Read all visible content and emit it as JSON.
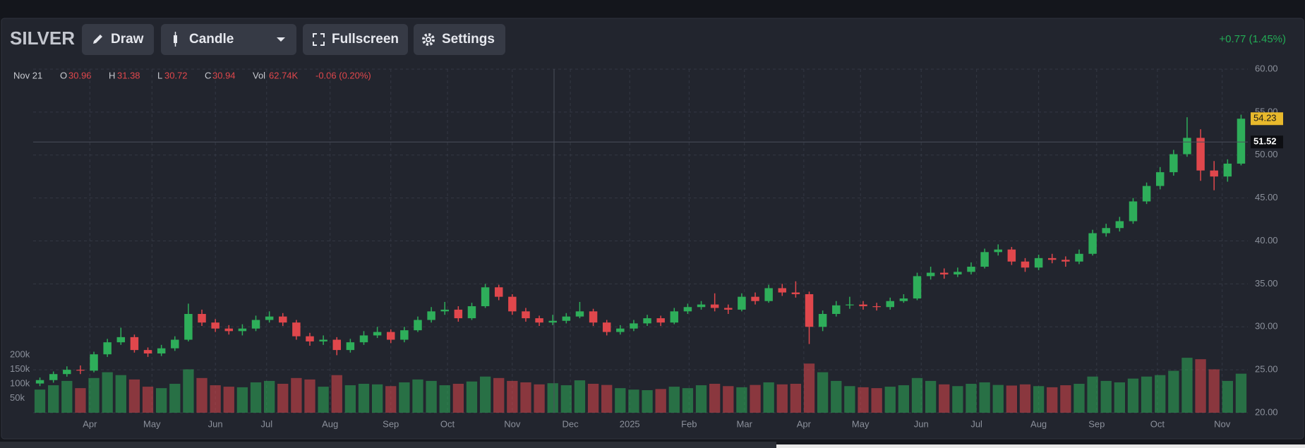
{
  "header": {
    "symbol": "SILVER",
    "buttons": [
      "Draw",
      "Candle",
      "Fullscreen",
      "Settings"
    ],
    "change": "+0.77 (1.45%)"
  },
  "legend": {
    "date": "Nov 21",
    "open_label": "O",
    "open": 30.96,
    "high_label": "H",
    "high": 31.38,
    "low_label": "L",
    "low": 30.72,
    "close_label": "C",
    "close": 30.94,
    "volume_label": "Vol",
    "volume": "62.74K",
    "change": "-0.06 (0.20%)"
  },
  "chart_data": {
    "type": "candlestick",
    "open": [
      23.4,
      23.8,
      24.5,
      25.0,
      24.9,
      26.8,
      28.2,
      28.8,
      27.3,
      26.9,
      27.5,
      28.5,
      31.5,
      30.5,
      29.8,
      29.5,
      29.8,
      30.8,
      31.2,
      30.5,
      28.9,
      28.3,
      28.5,
      27.3,
      28.2,
      29.0,
      29.4,
      28.5,
      29.6,
      30.8,
      31.8,
      32.0,
      31.0,
      32.4,
      34.6,
      33.5,
      31.8,
      31.0,
      30.5,
      30.7,
      31.2,
      31.8,
      30.5,
      29.4,
      29.8,
      30.4,
      31.0,
      30.5,
      31.8,
      32.3,
      32.6,
      32.2,
      32.0,
      33.5,
      33.0,
      34.5,
      34.0,
      33.8,
      30.0,
      31.5,
      32.5,
      32.6,
      32.4,
      32.3,
      33.0,
      33.3,
      35.9,
      36.3,
      36.1,
      36.4,
      37.0,
      38.7,
      39.0,
      37.6,
      36.9,
      38.0,
      37.8,
      37.6,
      38.5,
      40.9,
      41.5,
      42.3,
      44.6,
      46.4,
      48.0,
      50.1,
      52.0,
      48.2,
      47.5,
      49.0
    ],
    "high": [
      24.1,
      24.8,
      25.4,
      25.5,
      27.1,
      28.6,
      29.9,
      29.1,
      27.6,
      27.9,
      28.9,
      32.7,
      32.0,
      30.9,
      30.2,
      30.3,
      31.3,
      31.8,
      31.6,
      30.8,
      29.3,
      29.0,
      28.8,
      28.6,
      29.5,
      30.0,
      29.7,
      30.0,
      31.2,
      32.3,
      32.9,
      32.4,
      32.8,
      35.0,
      34.9,
      33.8,
      32.2,
      31.3,
      31.4,
      31.6,
      32.9,
      32.1,
      30.8,
      30.2,
      30.8,
      31.4,
      31.3,
      32.2,
      32.7,
      33.0,
      33.9,
      32.6,
      33.9,
      34.0,
      34.9,
      35.0,
      35.3,
      34.1,
      31.9,
      33.0,
      33.5,
      33.0,
      32.8,
      33.4,
      33.8,
      36.3,
      37.0,
      36.8,
      36.9,
      37.5,
      39.1,
      39.6,
      39.3,
      38.0,
      38.4,
      38.5,
      38.2,
      39.0,
      41.3,
      42.0,
      42.8,
      45.0,
      46.8,
      48.6,
      50.6,
      54.4,
      53.0,
      49.3,
      49.5,
      54.7
    ],
    "low": [
      23.1,
      23.5,
      24.2,
      24.5,
      24.7,
      26.5,
      27.9,
      27.0,
      26.5,
      26.6,
      27.2,
      28.3,
      30.1,
      29.4,
      29.1,
      29.0,
      29.5,
      30.5,
      30.1,
      28.5,
      27.8,
      27.9,
      26.7,
      27.0,
      27.9,
      28.7,
      28.1,
      28.2,
      29.4,
      30.5,
      31.4,
      30.6,
      30.8,
      32.2,
      33.1,
      31.4,
      30.6,
      30.1,
      30.2,
      30.4,
      31.0,
      30.1,
      29.0,
      29.1,
      29.5,
      30.1,
      30.1,
      30.3,
      31.5,
      32.0,
      31.8,
      31.5,
      31.8,
      32.6,
      32.8,
      33.6,
      33.4,
      28.0,
      29.5,
      31.2,
      32.1,
      32.0,
      31.9,
      32.0,
      32.8,
      33.1,
      35.5,
      35.6,
      35.8,
      36.1,
      36.8,
      38.3,
      37.2,
      36.4,
      36.6,
      37.4,
      37.0,
      37.3,
      38.3,
      40.5,
      41.1,
      42.0,
      44.3,
      46.0,
      47.6,
      49.8,
      47.0,
      45.9,
      46.9,
      48.8
    ],
    "close": [
      23.8,
      24.5,
      25.0,
      24.9,
      26.8,
      28.2,
      28.8,
      27.3,
      26.9,
      27.5,
      28.5,
      31.5,
      30.5,
      29.8,
      29.5,
      29.8,
      30.8,
      31.2,
      30.5,
      28.9,
      28.3,
      28.5,
      27.3,
      28.2,
      29.0,
      29.4,
      28.5,
      29.6,
      30.8,
      31.8,
      32.0,
      31.0,
      32.4,
      34.6,
      33.5,
      31.8,
      31.0,
      30.5,
      30.7,
      31.2,
      31.8,
      30.5,
      29.4,
      29.8,
      30.4,
      31.0,
      30.5,
      31.8,
      32.3,
      32.6,
      32.2,
      32.0,
      33.5,
      33.0,
      34.5,
      34.0,
      33.8,
      30.0,
      31.5,
      32.5,
      32.6,
      32.4,
      32.3,
      33.0,
      33.3,
      35.9,
      36.3,
      36.1,
      36.4,
      37.0,
      38.7,
      39.0,
      37.6,
      36.9,
      38.0,
      37.8,
      37.6,
      38.5,
      40.9,
      41.5,
      42.3,
      44.6,
      46.4,
      48.0,
      50.1,
      52.0,
      48.2,
      47.5,
      49.0,
      54.23
    ],
    "volume": [
      80000,
      95000,
      110000,
      85000,
      120000,
      140000,
      130000,
      115000,
      90000,
      85000,
      100000,
      150000,
      120000,
      95000,
      90000,
      88000,
      105000,
      110000,
      100000,
      120000,
      115000,
      90000,
      130000,
      95000,
      100000,
      98000,
      92000,
      105000,
      115000,
      110000,
      95000,
      100000,
      108000,
      125000,
      120000,
      110000,
      105000,
      98000,
      102000,
      95000,
      112000,
      100000,
      96000,
      85000,
      80000,
      78000,
      82000,
      90000,
      85000,
      95000,
      100000,
      92000,
      88000,
      96000,
      105000,
      98000,
      100000,
      170000,
      140000,
      110000,
      92000,
      88000,
      85000,
      90000,
      95000,
      120000,
      110000,
      98000,
      92000,
      100000,
      105000,
      96000,
      94000,
      98000,
      92000,
      88000,
      95000,
      100000,
      125000,
      110000,
      105000,
      118000,
      125000,
      130000,
      145000,
      190000,
      185000,
      150000,
      110000,
      135000
    ],
    "up_color": "#2eae5a",
    "down_color": "#e0474c",
    "xlim": [
      0,
      90
    ],
    "xticks": [
      {
        "value": 4.2,
        "label": "Apr"
      },
      {
        "value": 8.8,
        "label": "May"
      },
      {
        "value": 13.5,
        "label": "Jun"
      },
      {
        "value": 17.3,
        "label": "Jul"
      },
      {
        "value": 22.0,
        "label": "Aug"
      },
      {
        "value": 26.5,
        "label": "Sep"
      },
      {
        "value": 30.7,
        "label": "Oct"
      },
      {
        "value": 35.5,
        "label": "Nov"
      },
      {
        "value": 39.8,
        "label": "Dec"
      },
      {
        "value": 44.2,
        "label": "2025"
      },
      {
        "value": 48.6,
        "label": "Feb"
      },
      {
        "value": 52.7,
        "label": "Mar"
      },
      {
        "value": 57.1,
        "label": "Apr"
      },
      {
        "value": 61.3,
        "label": "May"
      },
      {
        "value": 65.8,
        "label": "Jun"
      },
      {
        "value": 69.9,
        "label": "Jul"
      },
      {
        "value": 74.5,
        "label": "Aug"
      },
      {
        "value": 78.8,
        "label": "Sep"
      },
      {
        "value": 83.3,
        "label": "Oct"
      },
      {
        "value": 88.1,
        "label": "Nov"
      }
    ],
    "ylim": [
      20,
      60
    ],
    "yticks": [
      {
        "value": 20,
        "label": "20.00"
      },
      {
        "value": 25,
        "label": "25.00"
      },
      {
        "value": 30,
        "label": "30.00"
      },
      {
        "value": 35,
        "label": "35.00"
      },
      {
        "value": 40,
        "label": "40.00"
      },
      {
        "value": 45,
        "label": "45.00"
      },
      {
        "value": 50,
        "label": "50.00"
      },
      {
        "value": 55,
        "label": "55.00"
      },
      {
        "value": 60,
        "label": "60.00"
      }
    ],
    "volume_ylim": [
      0,
      200000
    ],
    "volume_ticks": [
      {
        "value": 50000,
        "label": "50k"
      },
      {
        "value": 100000,
        "label": "100k"
      },
      {
        "value": 150000,
        "label": "150k"
      },
      {
        "value": 200000,
        "label": "200k"
      }
    ],
    "last_price": 54.23,
    "crosshair_price": 51.52,
    "grid": true
  }
}
